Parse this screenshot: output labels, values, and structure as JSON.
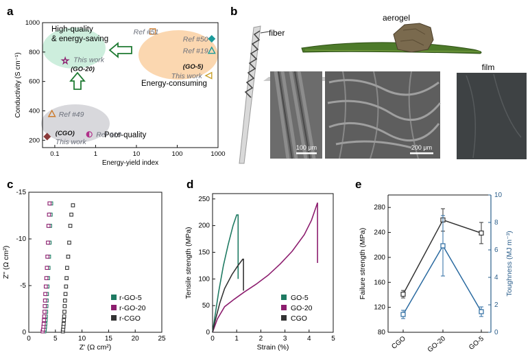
{
  "panel_labels": {
    "a": "a",
    "b": "b",
    "c": "c",
    "d": "d",
    "e": "e"
  },
  "panel_b": {
    "fiber_label": "fiber",
    "aerogel_label": "aerogel",
    "film_label": "film",
    "scale_bar_1": "100 μm",
    "scale_bar_2": "200 μm"
  },
  "colors": {
    "green": "#1e7a62",
    "purple": "#8c1d6e",
    "gray": "#333333",
    "blue_axis": "#2a5d8a",
    "teal": "#1a9a9a",
    "orange": "#cc7a2a",
    "brown": "#8b3a3a",
    "magenta": "#b0308a",
    "highlight_green": "#cdeedd",
    "highlight_orange": "#fbd7b0",
    "highlight_gray": "#d8d8dc"
  },
  "chart_data": [
    {
      "id": "a",
      "type": "scatter",
      "xlabel": "Energy-yield index",
      "ylabel": "Conductivity (S cm⁻¹)",
      "xscale": "log",
      "xlim": [
        0.05,
        1000
      ],
      "ylim": [
        150,
        1000
      ],
      "xticks": [
        {
          "v": 0.1,
          "label": "0.1"
        },
        {
          "v": 1,
          "label": "1"
        },
        {
          "v": 10,
          "label": "10"
        },
        {
          "v": 100,
          "label": "100"
        },
        {
          "v": 1000,
          "label": "1000"
        }
      ],
      "yticks": [
        200,
        400,
        600,
        800,
        1000
      ],
      "regions": [
        {
          "name": "high-quality",
          "line1": "High-quality",
          "line2": "& energy-saving",
          "color": "#cdeedd"
        },
        {
          "name": "energy-consuming",
          "label": "Energy-consuming",
          "color": "#fbd7b0"
        },
        {
          "name": "poor-quality",
          "label": "Poor-quality",
          "color": "#d8d8dc"
        }
      ],
      "points": [
        {
          "name": "this-work-go20",
          "x": 0.18,
          "y": 740,
          "marker": "star",
          "color": "#8c1d6e",
          "label": "This work",
          "sublabel": "(GO-20)"
        },
        {
          "name": "ref51",
          "x": 25,
          "y": 940,
          "marker": "square",
          "color": "#cc7a2a",
          "label": "Ref #51"
        },
        {
          "name": "ref50",
          "x": 700,
          "y": 890,
          "marker": "diamond",
          "color": "#1a9a9a",
          "label": "Ref #50"
        },
        {
          "name": "ref19-high",
          "x": 700,
          "y": 810,
          "marker": "triangle",
          "color": "#1a9a9a",
          "label": "Ref #19"
        },
        {
          "name": "this-work-go5",
          "x": 600,
          "y": 640,
          "marker": "triangle-left",
          "color": "#c8a02a",
          "label": "This work",
          "sublabel": "(GO-5)"
        },
        {
          "name": "ref49",
          "x": 0.085,
          "y": 380,
          "marker": "triangle",
          "color": "#cc7a2a",
          "label": "Ref #49"
        },
        {
          "name": "this-work-cgo",
          "x": 0.065,
          "y": 225,
          "marker": "diamond",
          "color": "#8b3a3a",
          "label": "This work",
          "sublabel": "(CGO)"
        },
        {
          "name": "ref19-low",
          "x": 0.7,
          "y": 240,
          "marker": "half-circle",
          "color": "#b0308a",
          "label": "Ref #19"
        }
      ]
    },
    {
      "id": "c",
      "type": "scatter",
      "xlabel": "Z' (Ω cm²)",
      "ylabel": "Z'' (Ω cm²)",
      "xlim": [
        0,
        25
      ],
      "ylim": [
        0,
        -15
      ],
      "xticks": [
        0,
        5,
        10,
        15,
        20,
        25
      ],
      "yticks": [
        {
          "v": -15,
          "label": "-15"
        },
        {
          "v": -10,
          "label": "-10"
        },
        {
          "v": -5,
          "label": "-5"
        },
        {
          "v": 0,
          "label": "0"
        }
      ],
      "legend_position": "bottom-left",
      "series": [
        {
          "name": "r-GO-5",
          "color": "#1e7a62",
          "x": [
            2.9,
            3.0,
            3.05,
            3.1,
            3.15,
            3.2,
            3.25,
            3.3,
            3.35,
            3.4,
            3.5,
            3.6,
            3.7,
            3.8,
            3.9,
            4.0,
            4.1,
            4.2
          ],
          "y": [
            -0.1,
            -0.3,
            -0.6,
            -0.9,
            -1.3,
            -1.7,
            -2.2,
            -2.8,
            -3.4,
            -4.1,
            -4.9,
            -5.8,
            -6.9,
            -8.1,
            -9.6,
            -11.4,
            -12.6,
            -13.8
          ]
        },
        {
          "name": "r-GO-20",
          "color": "#8c1d6e",
          "x": [
            2.6,
            2.7,
            2.75,
            2.8,
            2.85,
            2.9,
            2.95,
            3.0,
            3.05,
            3.1,
            3.2,
            3.3,
            3.4,
            3.5,
            3.6,
            3.7,
            3.8,
            3.9
          ],
          "y": [
            -0.1,
            -0.3,
            -0.6,
            -0.9,
            -1.3,
            -1.7,
            -2.2,
            -2.8,
            -3.4,
            -4.1,
            -4.9,
            -5.8,
            -6.9,
            -8.1,
            -9.6,
            -11.4,
            -12.6,
            -13.8
          ]
        },
        {
          "name": "r-CGO",
          "color": "#333333",
          "x": [
            6.4,
            6.45,
            6.5,
            6.55,
            6.6,
            6.65,
            6.7,
            6.75,
            6.8,
            6.9,
            7.0,
            7.1,
            7.2,
            7.4,
            7.6,
            7.8,
            8.0,
            8.3
          ],
          "y": [
            -0.1,
            -0.3,
            -0.6,
            -0.9,
            -1.3,
            -1.7,
            -2.2,
            -2.8,
            -3.4,
            -4.1,
            -4.9,
            -5.8,
            -6.9,
            -8.1,
            -9.6,
            -11.4,
            -12.6,
            -13.6
          ]
        }
      ]
    },
    {
      "id": "d",
      "type": "line",
      "xlabel": "Strain (%)",
      "ylabel": "Tensile strength (MPa)",
      "xlim": [
        0,
        5
      ],
      "ylim": [
        0,
        260
      ],
      "xticks": [
        0,
        1,
        2,
        3,
        4,
        5
      ],
      "yticks": [
        0,
        50,
        100,
        150,
        200,
        250
      ],
      "legend_position": "bottom-right",
      "series": [
        {
          "name": "GO-5",
          "color": "#1e7a62",
          "x": [
            0,
            0.1,
            0.25,
            0.45,
            0.65,
            0.85,
            1.0,
            1.06,
            1.06
          ],
          "y": [
            0,
            30,
            75,
            125,
            165,
            200,
            220,
            220,
            100
          ]
        },
        {
          "name": "GO-20",
          "color": "#8c1d6e",
          "x": [
            0,
            0.2,
            0.5,
            0.9,
            1.3,
            1.8,
            2.3,
            2.8,
            3.3,
            3.8,
            4.1,
            4.35,
            4.35
          ],
          "y": [
            0,
            25,
            48,
            62,
            75,
            90,
            107,
            128,
            152,
            183,
            210,
            243,
            130
          ]
        },
        {
          "name": "CGO",
          "color": "#333333",
          "x": [
            0,
            0.1,
            0.3,
            0.5,
            0.8,
            1.05,
            1.25,
            1.28,
            1.28
          ],
          "y": [
            0,
            20,
            55,
            82,
            108,
            125,
            137,
            137,
            78
          ]
        }
      ]
    },
    {
      "id": "e",
      "type": "line",
      "categories": [
        "CGO",
        "GO-20",
        "GO-5"
      ],
      "ylabel": "Failure strength (MPa)",
      "y2label": "Toughness (MJ m⁻³)",
      "ylim": [
        80,
        300
      ],
      "y2lim": [
        0,
        10
      ],
      "yticks": [
        80,
        120,
        160,
        200,
        240,
        280
      ],
      "y2ticks": [
        0,
        2,
        4,
        6,
        8,
        10
      ],
      "series": [
        {
          "name": "Failure strength",
          "axis": "left",
          "color": "#333333",
          "values": [
            141,
            260,
            239
          ],
          "errors": [
            6,
            18,
            17
          ]
        },
        {
          "name": "Toughness",
          "axis": "right",
          "color": "#2a6aa0",
          "values": [
            1.3,
            6.3,
            1.5
          ],
          "errors": [
            0.3,
            2.2,
            0.35
          ]
        }
      ]
    }
  ]
}
